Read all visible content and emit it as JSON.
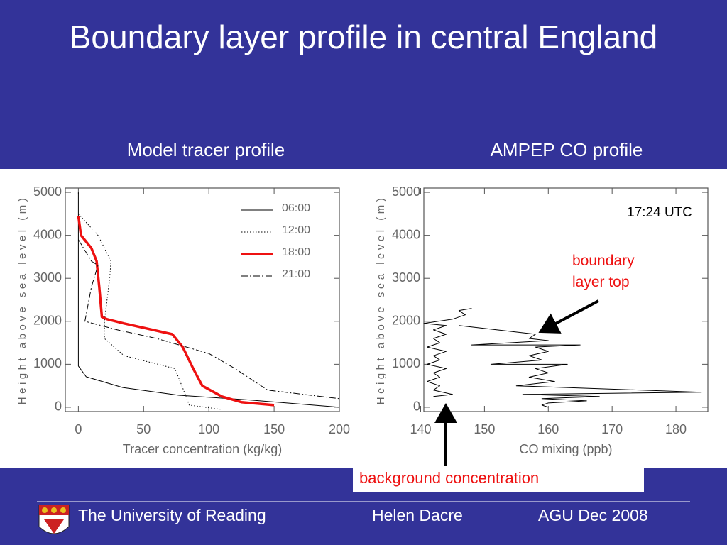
{
  "title": "Boundary layer profile in central England",
  "chart_data": [
    {
      "type": "line",
      "title": "Model tracer profile",
      "xlabel": "Tracer concentration (kg/kg)",
      "ylabel": "Height above sea level (m)",
      "xlim": [
        -10,
        200
      ],
      "ylim": [
        -100,
        5100
      ],
      "xticks": [
        0,
        50,
        100,
        150,
        200
      ],
      "yticks": [
        0,
        1000,
        2000,
        3000,
        4000,
        5000
      ],
      "legend": "upper right",
      "series": [
        {
          "name": "06:00",
          "color": "#000000",
          "style": "solid",
          "linewidth": 1,
          "x": [
            0,
            0,
            6,
            34,
            77,
            131,
            200
          ],
          "values": [
            5000,
            960,
            710,
            460,
            280,
            170,
            0
          ]
        },
        {
          "name": "12:00",
          "color": "#000000",
          "style": "dotted",
          "linewidth": 1,
          "x": [
            0,
            15,
            25,
            24,
            20,
            20,
            35,
            74,
            80,
            85,
            110
          ],
          "values": [
            4500,
            4000,
            3400,
            3000,
            2000,
            1600,
            1200,
            900,
            450,
            50,
            -50
          ]
        },
        {
          "name": "18:00",
          "color": "#ee1111",
          "style": "solid",
          "linewidth": 3.5,
          "x": [
            0,
            2,
            10,
            14,
            16,
            18,
            22,
            35,
            50,
            72,
            80,
            88,
            95,
            110,
            125,
            150
          ],
          "values": [
            4450,
            4000,
            3700,
            3400,
            2800,
            2100,
            2050,
            1950,
            1850,
            1700,
            1400,
            900,
            500,
            250,
            120,
            50
          ]
        },
        {
          "name": "21:00",
          "color": "#000000",
          "style": "dashdot",
          "linewidth": 1,
          "x": [
            0,
            10,
            15,
            10,
            5,
            30,
            60,
            100,
            120,
            145,
            200
          ],
          "values": [
            3900,
            3400,
            3300,
            2800,
            2000,
            1800,
            1600,
            1250,
            900,
            400,
            200
          ]
        }
      ]
    },
    {
      "type": "line",
      "title": "AMPEP CO profile",
      "xlabel": "CO mixing (ppb)",
      "ylabel": "Height above sea level (m)",
      "xlim": [
        140.5,
        185
      ],
      "ylim": [
        -100,
        5100
      ],
      "xticks": [
        140,
        150,
        160,
        170,
        180
      ],
      "yticks": [
        0,
        1000,
        2000,
        3000,
        4000,
        5000
      ],
      "annotations": [
        {
          "text": "17:24 UTC",
          "color": "#000000"
        },
        {
          "text": "boundary layer top",
          "color": "#ee1111"
        }
      ],
      "series": [
        {
          "color": "#000000",
          "style": "solid",
          "linewidth": 1,
          "x": [
            148,
            146,
            147,
            145,
            140.5,
            144,
            142,
            144,
            142,
            143,
            141,
            144,
            142,
            143,
            141,
            144,
            142,
            143,
            141,
            143,
            142,
            145,
            142,
            null,
            146,
            152,
            158,
            157,
            160,
            148,
            165,
            158,
            160,
            157,
            159,
            151,
            163,
            158,
            160,
            157,
            161,
            155,
            184,
            156,
            168,
            159,
            166,
            160,
            159,
            160
          ],
          "values": [
            2300,
            2250,
            2150,
            2050,
            1950,
            1900,
            1800,
            1700,
            1600,
            1500,
            1400,
            1300,
            1200,
            1100,
            1000,
            900,
            800,
            700,
            600,
            500,
            400,
            300,
            250,
            null,
            1900,
            1800,
            1700,
            1600,
            1550,
            1450,
            1450,
            1400,
            1300,
            1200,
            1100,
            1000,
            1000,
            900,
            800,
            700,
            600,
            500,
            350,
            300,
            250,
            200,
            150,
            100,
            50,
            0
          ]
        }
      ]
    }
  ],
  "annotation": "background concentration",
  "footer": {
    "institution": "The University of Reading",
    "author": "Helen Dacre",
    "event": "AGU Dec 2008"
  }
}
